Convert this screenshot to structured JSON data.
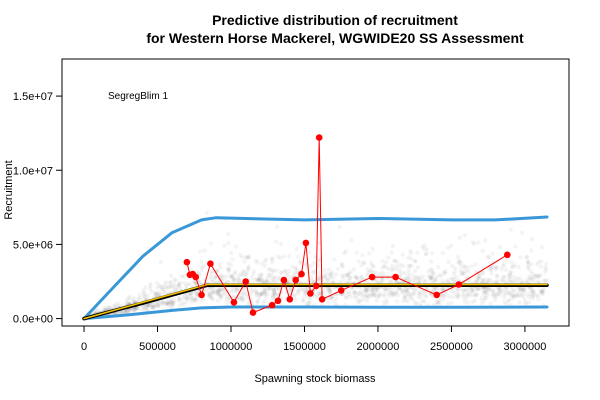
{
  "chart_data": {
    "type": "scatter",
    "title_line1": "Predictive distribution of recruitment",
    "title_line2": "for Western Horse Mackerel, WGWIDE20 SS Assessment",
    "xlabel": "Spawning stock biomass",
    "ylabel": "Recruitment",
    "annotation": "SegregBlim 1",
    "xlim": [
      -150000,
      3300000
    ],
    "ylim": [
      -500000,
      17500000
    ],
    "x_ticks": [
      0,
      500000,
      1000000,
      1500000,
      2000000,
      2500000,
      3000000
    ],
    "x_tick_labels": [
      "0",
      "500000",
      "1000000",
      "1500000",
      "2000000",
      "2500000",
      "3000000"
    ],
    "y_ticks": [
      0,
      5000000,
      10000000,
      15000000
    ],
    "y_tick_labels": [
      "0.0e+00",
      "5.0e+06",
      "1.0e+07",
      "1.5e+07"
    ],
    "colors": {
      "upper_band": "#3a98d8",
      "lower_band": "#3a98d8",
      "median": "#000000",
      "fit": "#f2c200",
      "observed": "#ff0000",
      "cloud": "#000000"
    },
    "series": [
      {
        "role": "upper",
        "x": [
          0,
          200000,
          400000,
          600000,
          800000,
          900000,
          1100000,
          1500000,
          2000000,
          2500000,
          2800000,
          3150000
        ],
        "y": [
          0,
          2100000,
          4200000,
          5800000,
          6650000,
          6800000,
          6750000,
          6650000,
          6750000,
          6650000,
          6650000,
          6850000
        ]
      },
      {
        "role": "lower",
        "x": [
          0,
          300000,
          600000,
          800000,
          1000000,
          1500000,
          2000000,
          2500000,
          3150000
        ],
        "y": [
          0,
          250000,
          550000,
          720000,
          780000,
          780000,
          770000,
          770000,
          780000
        ]
      },
      {
        "role": "median",
        "x": [
          0,
          420000,
          840000,
          3150000
        ],
        "y": [
          0,
          1100000,
          2250000,
          2250000
        ]
      },
      {
        "role": "fit",
        "x": [
          0,
          420000,
          840000,
          3150000
        ],
        "y": [
          0,
          1150000,
          2300000,
          2300000
        ]
      },
      {
        "role": "observed",
        "x": [
          700000,
          720000,
          740000,
          760000,
          800000,
          860000,
          1020000,
          1100000,
          1150000,
          1280000,
          1320000,
          1360000,
          1400000,
          1440000,
          1480000,
          1510000,
          1540000,
          1580000,
          1600000,
          1620000,
          1750000,
          1960000,
          2120000,
          2400000,
          2550000,
          2880000
        ],
        "y": [
          3800000,
          2950000,
          3000000,
          2800000,
          1600000,
          3700000,
          1100000,
          2500000,
          400000,
          900000,
          1200000,
          2600000,
          1300000,
          2600000,
          3000000,
          5100000,
          1700000,
          2200000,
          12200000,
          1300000,
          1900000,
          2800000,
          2800000,
          1600000,
          2300000,
          4300000
        ]
      }
    ]
  }
}
